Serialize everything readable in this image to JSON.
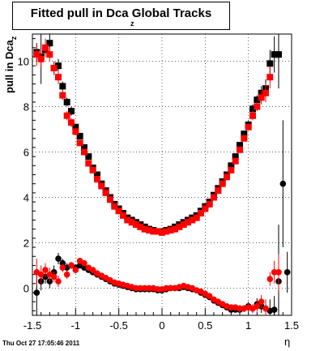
{
  "chart_data": {
    "type": "scatter",
    "title": "Fitted pull in Dca Global Tracks",
    "title_subscript": "z",
    "ylabel": "pull in Dca",
    "ylabel_subscript": "z",
    "xlabel": "η",
    "xlim": [
      -1.5,
      1.5
    ],
    "ylim": [
      -1.2,
      11.2
    ],
    "x_ticks": [
      "-1.5",
      "-1",
      "-0.5",
      "0",
      "0.5",
      "1",
      "1.5"
    ],
    "y_ticks": [
      "0",
      "2",
      "4",
      "6",
      "8",
      "10"
    ],
    "grid": true,
    "legend": "none",
    "series": [
      {
        "marker": "square",
        "color": "#000000",
        "x": [
          -1.45,
          -1.4,
          -1.35,
          -1.3,
          -1.25,
          -1.2,
          -1.15,
          -1.1,
          -1.05,
          -1.0,
          -0.95,
          -0.9,
          -0.85,
          -0.8,
          -0.75,
          -0.7,
          -0.65,
          -0.6,
          -0.55,
          -0.5,
          -0.45,
          -0.4,
          -0.35,
          -0.3,
          -0.25,
          -0.2,
          -0.15,
          -0.1,
          -0.05,
          0.0,
          0.05,
          0.1,
          0.15,
          0.2,
          0.25,
          0.3,
          0.35,
          0.4,
          0.45,
          0.5,
          0.55,
          0.6,
          0.65,
          0.7,
          0.75,
          0.8,
          0.85,
          0.9,
          0.95,
          1.0,
          1.05,
          1.1,
          1.15,
          1.2,
          1.25,
          1.3,
          1.35,
          1.4
        ],
        "y": [
          10.4,
          10.2,
          10.5,
          10.8,
          9.7,
          9.8,
          8.9,
          8.2,
          7.8,
          7.1,
          6.7,
          6.2,
          5.8,
          5.3,
          5.0,
          4.6,
          4.3,
          4.0,
          3.7,
          3.5,
          3.3,
          3.1,
          3.0,
          2.9,
          2.8,
          2.7,
          2.6,
          2.55,
          2.5,
          2.5,
          2.55,
          2.6,
          2.7,
          2.8,
          2.9,
          3.0,
          3.1,
          3.2,
          3.4,
          3.6,
          3.8,
          4.1,
          4.4,
          4.7,
          5.0,
          5.4,
          5.8,
          6.3,
          6.8,
          7.2,
          7.9,
          8.3,
          8.6,
          8.8,
          9.9,
          10.3,
          10.3,
          null
        ],
        "err": [
          0.4,
          1.2,
          0.3,
          0.5,
          0.3,
          0.3,
          0.2,
          0.2,
          0.2,
          0.15,
          0.1,
          0.1,
          0.1,
          0.1,
          0.1,
          0.1,
          0.1,
          0.1,
          0.1,
          0.1,
          0.1,
          0.1,
          0.1,
          0.1,
          0.1,
          0.1,
          0.1,
          0.1,
          0.1,
          0.1,
          0.1,
          0.1,
          0.1,
          0.1,
          0.1,
          0.1,
          0.1,
          0.1,
          0.1,
          0.1,
          0.1,
          0.1,
          0.1,
          0.1,
          0.1,
          0.1,
          0.1,
          0.1,
          0.1,
          0.2,
          0.2,
          0.2,
          0.3,
          0.4,
          0.6,
          0.8,
          1.5,
          0
        ]
      },
      {
        "marker": "square",
        "color": "#ff0000",
        "x": [
          -1.45,
          -1.4,
          -1.35,
          -1.3,
          -1.25,
          -1.2,
          -1.15,
          -1.1,
          -1.05,
          -1.0,
          -0.95,
          -0.9,
          -0.85,
          -0.8,
          -0.75,
          -0.7,
          -0.65,
          -0.6,
          -0.55,
          -0.5,
          -0.45,
          -0.4,
          -0.35,
          -0.3,
          -0.25,
          -0.2,
          -0.15,
          -0.1,
          -0.05,
          0.0,
          0.05,
          0.1,
          0.15,
          0.2,
          0.25,
          0.3,
          0.35,
          0.4,
          0.45,
          0.5,
          0.55,
          0.6,
          0.65,
          0.7,
          0.75,
          0.8,
          0.85,
          0.9,
          0.95,
          1.0,
          1.05,
          1.1,
          1.15,
          1.2,
          1.25
        ],
        "y": [
          10.3,
          10.1,
          10.6,
          10.3,
          9.7,
          9.3,
          8.5,
          7.6,
          7.3,
          6.9,
          6.4,
          6.0,
          5.5,
          5.2,
          4.8,
          4.5,
          4.2,
          3.9,
          3.6,
          3.4,
          3.2,
          3.0,
          2.9,
          2.8,
          2.7,
          2.6,
          2.55,
          2.5,
          2.5,
          2.45,
          2.5,
          2.55,
          2.6,
          2.7,
          2.8,
          2.9,
          3.0,
          3.1,
          3.3,
          3.5,
          3.7,
          4.0,
          4.3,
          4.6,
          4.9,
          5.2,
          5.6,
          6.1,
          6.6,
          7.1,
          7.6,
          8.0,
          8.4,
          8.6,
          9.3
        ],
        "err": [
          0.5,
          0.4,
          0.4,
          0.3,
          0.3,
          0.3,
          0.2,
          0.2,
          0.2,
          0.15,
          0.1,
          0.1,
          0.1,
          0.1,
          0.1,
          0.1,
          0.1,
          0.1,
          0.1,
          0.1,
          0.1,
          0.1,
          0.1,
          0.1,
          0.1,
          0.1,
          0.1,
          0.1,
          0.1,
          0.1,
          0.1,
          0.1,
          0.1,
          0.1,
          0.1,
          0.1,
          0.1,
          0.1,
          0.1,
          0.1,
          0.1,
          0.1,
          0.1,
          0.1,
          0.1,
          0.1,
          0.1,
          0.1,
          0.1,
          0.15,
          0.2,
          0.2,
          0.3,
          0.4,
          0.5
        ]
      },
      {
        "marker": "circle",
        "color": "#000000",
        "x": [
          -1.45,
          -1.4,
          -1.35,
          -1.3,
          -1.25,
          -1.2,
          -1.15,
          -1.1,
          -1.05,
          -1.0,
          -0.95,
          -0.9,
          -0.85,
          -0.8,
          -0.75,
          -0.7,
          -0.65,
          -0.6,
          -0.55,
          -0.5,
          -0.45,
          -0.4,
          -0.35,
          -0.3,
          -0.25,
          -0.2,
          -0.15,
          -0.1,
          -0.05,
          0.0,
          0.05,
          0.1,
          0.15,
          0.2,
          0.25,
          0.3,
          0.35,
          0.4,
          0.45,
          0.5,
          0.55,
          0.6,
          0.65,
          0.7,
          0.75,
          0.8,
          0.85,
          0.9,
          0.95,
          1.0,
          1.05,
          1.1,
          1.15,
          1.2,
          1.25,
          1.3,
          1.35,
          1.4,
          1.45
        ],
        "y": [
          -0.2,
          0.3,
          0.5,
          0.3,
          0.7,
          1.3,
          1.1,
          0.9,
          1.0,
          0.9,
          1.0,
          0.9,
          0.8,
          0.7,
          0.6,
          0.5,
          0.4,
          0.3,
          0.2,
          0.15,
          0.1,
          0.05,
          0.0,
          -0.05,
          -0.05,
          -0.05,
          -0.05,
          -0.05,
          -0.1,
          -0.1,
          -0.05,
          0.0,
          0.0,
          0.0,
          0.05,
          0.0,
          -0.05,
          -0.1,
          -0.2,
          -0.3,
          -0.4,
          -0.55,
          -0.65,
          -0.75,
          -0.85,
          -0.95,
          -0.95,
          -0.95,
          -0.9,
          -0.8,
          -0.9,
          -0.7,
          -0.8,
          -0.9,
          -1.0,
          -0.95,
          0.3,
          4.6,
          0.7
        ],
        "err": [
          1.0,
          0.4,
          0.3,
          0.3,
          0.3,
          0.25,
          0.2,
          0.2,
          0.15,
          0.15,
          0.1,
          0.1,
          0.1,
          0.1,
          0.1,
          0.1,
          0.1,
          0.1,
          0.1,
          0.1,
          0.1,
          0.1,
          0.1,
          0.1,
          0.1,
          0.1,
          0.1,
          0.1,
          0.1,
          0.1,
          0.1,
          0.1,
          0.1,
          0.1,
          0.1,
          0.1,
          0.1,
          0.1,
          0.1,
          0.1,
          0.1,
          0.1,
          0.1,
          0.1,
          0.1,
          0.1,
          0.1,
          0.15,
          0.15,
          0.2,
          0.2,
          0.25,
          0.3,
          0.4,
          0.5,
          0.6,
          2.5,
          2.8,
          0.9
        ]
      },
      {
        "marker": "circle",
        "color": "#ff0000",
        "x": [
          -1.45,
          -1.4,
          -1.35,
          -1.3,
          -1.25,
          -1.2,
          -1.15,
          -1.1,
          -1.05,
          -1.0,
          -0.95,
          -0.9,
          -0.85,
          -0.8,
          -0.75,
          -0.7,
          -0.65,
          -0.6,
          -0.55,
          -0.5,
          -0.45,
          -0.4,
          -0.35,
          -0.3,
          -0.25,
          -0.2,
          -0.15,
          -0.1,
          -0.05,
          0.0,
          0.05,
          0.1,
          0.15,
          0.2,
          0.25,
          0.3,
          0.35,
          0.4,
          0.45,
          0.5,
          0.55,
          0.6,
          0.65,
          0.7,
          0.75,
          0.8,
          0.85,
          0.9,
          0.95,
          1.0,
          1.05,
          1.1,
          1.15,
          1.2,
          1.25,
          1.3,
          1.35
        ],
        "y": [
          0.7,
          0.6,
          0.8,
          0.6,
          0.5,
          0.3,
          0.9,
          0.6,
          1.0,
          0.8,
          1.2,
          1.1,
          0.9,
          0.8,
          0.65,
          0.55,
          0.45,
          0.35,
          0.25,
          0.2,
          0.15,
          0.1,
          0.05,
          0.0,
          0.0,
          0.0,
          0.0,
          0.0,
          -0.05,
          -0.05,
          0.0,
          0.0,
          0.0,
          0.05,
          0.1,
          0.05,
          0.0,
          -0.1,
          -0.15,
          -0.25,
          -0.35,
          -0.5,
          -0.6,
          -0.7,
          -0.8,
          -0.85,
          -0.85,
          -0.9,
          -0.9,
          -0.85,
          -0.9,
          -0.8,
          -0.6,
          -0.9,
          0.4,
          0.7,
          0.7
        ],
        "err": [
          0.6,
          0.4,
          0.3,
          0.3,
          0.25,
          0.25,
          0.2,
          0.2,
          0.15,
          0.15,
          0.1,
          0.1,
          0.1,
          0.1,
          0.1,
          0.1,
          0.1,
          0.1,
          0.1,
          0.1,
          0.1,
          0.1,
          0.1,
          0.1,
          0.1,
          0.1,
          0.1,
          0.1,
          0.1,
          0.1,
          0.1,
          0.1,
          0.1,
          0.1,
          0.1,
          0.1,
          0.1,
          0.1,
          0.1,
          0.1,
          0.1,
          0.1,
          0.1,
          0.1,
          0.1,
          0.1,
          0.1,
          0.15,
          0.15,
          0.2,
          0.2,
          0.25,
          0.3,
          0.4,
          0.3,
          0.5,
          0.8
        ]
      }
    ]
  },
  "footer": {
    "timestamp": "Thu Oct 27 17:05:46 2011"
  }
}
